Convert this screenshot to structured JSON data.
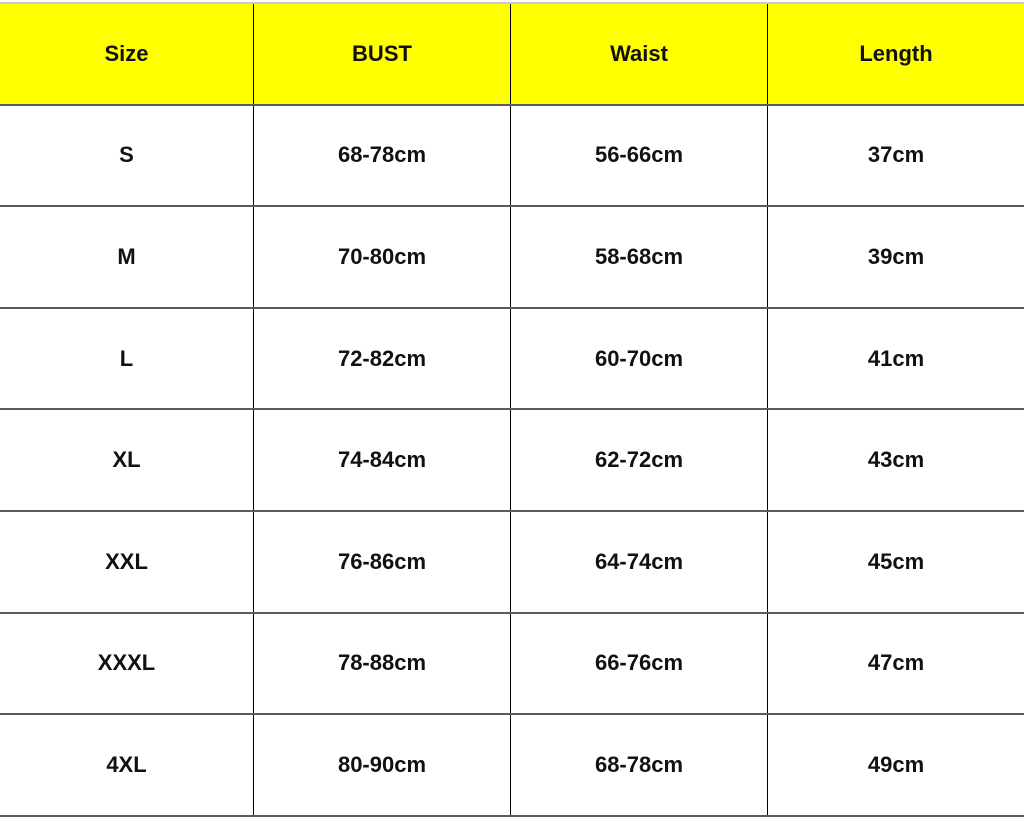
{
  "colors": {
    "header_bg": "#ffff00"
  },
  "table": {
    "headers": [
      "Size",
      "BUST",
      "Waist",
      "Length"
    ],
    "rows": [
      [
        "S",
        "68-78cm",
        "56-66cm",
        "37cm"
      ],
      [
        "M",
        "70-80cm",
        "58-68cm",
        "39cm"
      ],
      [
        "L",
        "72-82cm",
        "60-70cm",
        "41cm"
      ],
      [
        "XL",
        "74-84cm",
        "62-72cm",
        "43cm"
      ],
      [
        "XXL",
        "76-86cm",
        "64-74cm",
        "45cm"
      ],
      [
        "XXXL",
        "78-88cm",
        "66-76cm",
        "47cm"
      ],
      [
        "4XL",
        "80-90cm",
        "68-78cm",
        "49cm"
      ]
    ]
  }
}
